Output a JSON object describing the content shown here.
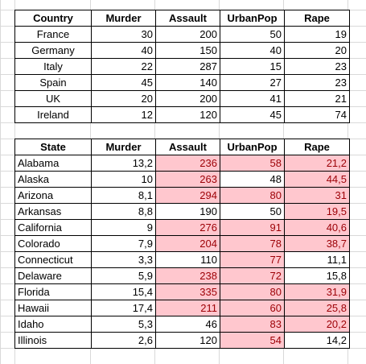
{
  "tables": [
    {
      "columns": [
        "Country",
        "Murder",
        "Assault",
        "UrbanPop",
        "Rape"
      ],
      "rows": [
        {
          "cells": [
            "France",
            "30",
            "200",
            "50",
            "19"
          ]
        },
        {
          "cells": [
            "Germany",
            "40",
            "150",
            "40",
            "20"
          ]
        },
        {
          "cells": [
            "Italy",
            "22",
            "287",
            "15",
            "23"
          ]
        },
        {
          "cells": [
            "Spain",
            "45",
            "140",
            "27",
            "23"
          ]
        },
        {
          "cells": [
            "UK",
            "20",
            "200",
            "41",
            "21"
          ]
        },
        {
          "cells": [
            "Ireland",
            "12",
            "120",
            "45",
            "74"
          ]
        }
      ],
      "first_column_align": "center"
    },
    {
      "columns": [
        "State",
        "Murder",
        "Assault",
        "UrbanPop",
        "Rape"
      ],
      "rows": [
        {
          "cells": [
            "Alabama",
            "13,2",
            "236",
            "58",
            "21,2"
          ],
          "highlight": [
            false,
            false,
            true,
            true,
            true
          ]
        },
        {
          "cells": [
            "Alaska",
            "10",
            "263",
            "48",
            "44,5"
          ],
          "highlight": [
            false,
            false,
            true,
            false,
            true
          ]
        },
        {
          "cells": [
            "Arizona",
            "8,1",
            "294",
            "80",
            "31"
          ],
          "highlight": [
            false,
            false,
            true,
            true,
            true
          ]
        },
        {
          "cells": [
            "Arkansas",
            "8,8",
            "190",
            "50",
            "19,5"
          ],
          "highlight": [
            false,
            false,
            false,
            false,
            true
          ]
        },
        {
          "cells": [
            "California",
            "9",
            "276",
            "91",
            "40,6"
          ],
          "highlight": [
            false,
            false,
            true,
            true,
            true
          ]
        },
        {
          "cells": [
            "Colorado",
            "7,9",
            "204",
            "78",
            "38,7"
          ],
          "highlight": [
            false,
            false,
            true,
            true,
            true
          ]
        },
        {
          "cells": [
            "Connecticut",
            "3,3",
            "110",
            "77",
            "11,1"
          ],
          "highlight": [
            false,
            false,
            false,
            true,
            false
          ]
        },
        {
          "cells": [
            "Delaware",
            "5,9",
            "238",
            "72",
            "15,8"
          ],
          "highlight": [
            false,
            false,
            true,
            true,
            false
          ]
        },
        {
          "cells": [
            "Florida",
            "15,4",
            "335",
            "80",
            "31,9"
          ],
          "highlight": [
            false,
            false,
            true,
            true,
            true
          ]
        },
        {
          "cells": [
            "Hawaii",
            "17,4",
            "211",
            "60",
            "25,8"
          ],
          "highlight": [
            false,
            false,
            true,
            true,
            true
          ]
        },
        {
          "cells": [
            "Idaho",
            "5,3",
            "46",
            "83",
            "20,2"
          ],
          "highlight": [
            false,
            false,
            false,
            true,
            true
          ]
        },
        {
          "cells": [
            "Illinois",
            "2,6",
            "120",
            "54",
            "14,2"
          ],
          "highlight": [
            false,
            false,
            false,
            true,
            false
          ]
        }
      ],
      "first_column_align": "left"
    }
  ]
}
